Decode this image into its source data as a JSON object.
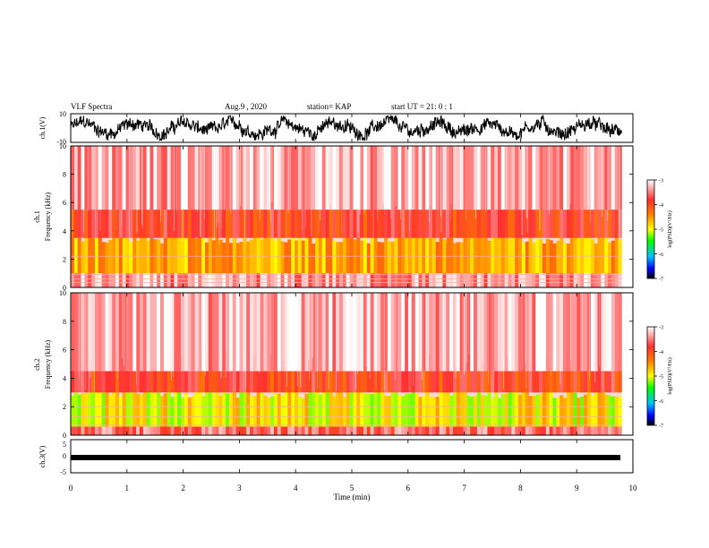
{
  "header": {
    "title": "VLF Spectra",
    "date": "Aug.9 , 2020",
    "station": "station= KAP",
    "start": "start UT = 21: 0 : 1"
  },
  "chart_data": [
    {
      "type": "line",
      "panel": "waveform-ch1",
      "ylabel": "ch.1(V)",
      "ylim": [
        -10,
        10
      ],
      "yticks": [
        "10",
        "-10"
      ],
      "xlim": [
        0,
        10
      ],
      "color": "#000000",
      "description_values": "dense noisy waveform between about -8 and 8 V over 0 to 9.8 min"
    },
    {
      "type": "heatmap",
      "panel": "spectrogram-ch1",
      "ylabel_top": "ch.1",
      "ylabel": "Frequency (kHz)",
      "ylim": [
        0,
        10
      ],
      "yticks": [
        "0",
        "2",
        "4",
        "6",
        "8",
        "10"
      ],
      "xlim": [
        0,
        9.8
      ],
      "colorbar": {
        "label": "log(PSD)(V²/Hz)",
        "ticks": [
          "-3",
          "-4",
          "-5",
          "-6",
          "-7"
        ],
        "range": [
          -7,
          -3
        ]
      },
      "bands": [
        {
          "f": [
            0,
            1.0
          ],
          "level": -3.4
        },
        {
          "f": [
            1.0,
            3.5
          ],
          "level": -4.6
        },
        {
          "f": [
            3.5,
            5.5
          ],
          "level": -3.9
        },
        {
          "f": [
            5.5,
            10
          ],
          "level": -3.3
        }
      ],
      "lines_khz": [
        2.2,
        0.9,
        0.6,
        0.35
      ]
    },
    {
      "type": "heatmap",
      "panel": "spectrogram-ch2",
      "ylabel_top": "ch.2",
      "ylabel": "Frequency (kHz)",
      "ylim": [
        0,
        10
      ],
      "yticks": [
        "0",
        "2",
        "4",
        "6",
        "8",
        "10"
      ],
      "xlim": [
        0,
        9.8
      ],
      "colorbar": {
        "label": "log(PSD)(V²/Hz)",
        "ticks": [
          "-3",
          "-4",
          "-5",
          "-6",
          "-7"
        ],
        "range": [
          -7,
          -3
        ]
      },
      "bands": [
        {
          "f": [
            0,
            0.6
          ],
          "level": -3.6
        },
        {
          "f": [
            0.6,
            3.0
          ],
          "level": -4.9
        },
        {
          "f": [
            3.0,
            4.5
          ],
          "level": -3.9
        },
        {
          "f": [
            4.5,
            10
          ],
          "level": -3.3
        }
      ],
      "lines_khz": [
        2.0,
        1.3,
        0.7
      ]
    },
    {
      "type": "line",
      "panel": "waveform-ch3",
      "ylabel": "ch.3(V)",
      "ylim": [
        -5,
        5
      ],
      "yticks": [
        "5",
        "0",
        "-5"
      ],
      "xlim": [
        0,
        10
      ],
      "color": "#000000",
      "description_values": "near-flat thick trace at about -1 V"
    }
  ],
  "xaxis": {
    "label": "Time (min)",
    "ticks": [
      "0",
      "1",
      "2",
      "3",
      "4",
      "5",
      "6",
      "7",
      "8",
      "9",
      "10"
    ]
  }
}
